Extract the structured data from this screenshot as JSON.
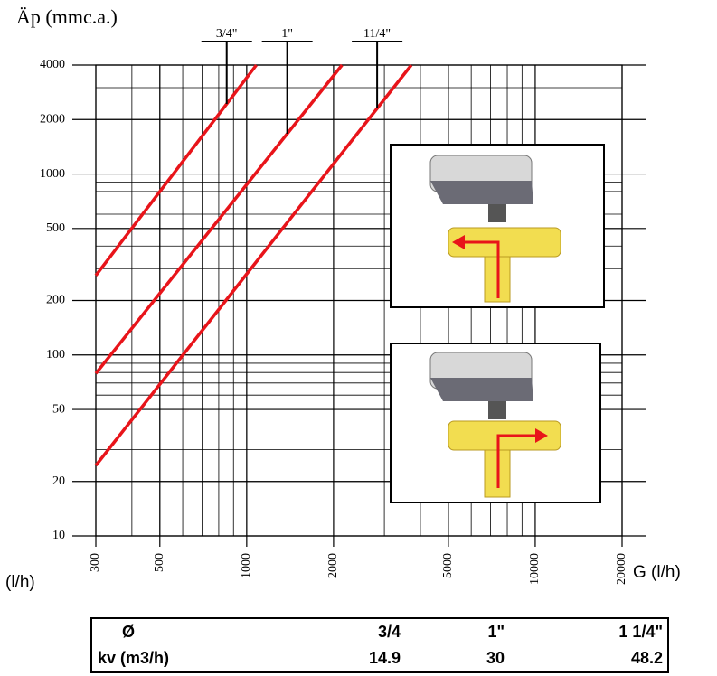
{
  "chart_data": {
    "type": "line",
    "title": "Äp (mmc.a.)",
    "x_label": "G (l/h)",
    "x_unit_label": "(l/h)",
    "log_x": true,
    "log_y": true,
    "grid": true,
    "minor_grid": true,
    "xlim": [
      300,
      20000
    ],
    "ylim": [
      10,
      4000
    ],
    "xticks": [
      300,
      500,
      1000,
      2000,
      5000,
      10000,
      20000
    ],
    "yticks": [
      10,
      20,
      50,
      100,
      200,
      500,
      1000,
      2000,
      4000
    ],
    "series": [
      {
        "name": "3/4\"",
        "color": "#e8141a",
        "x": [
          300,
          1080
        ],
        "values": [
          275,
          4000
        ]
      },
      {
        "name": "1\"",
        "color": "#e8141a",
        "x": [
          300,
          2140
        ],
        "values": [
          79,
          4000
        ]
      },
      {
        "name": "11/4\"",
        "color": "#e8141a",
        "x": [
          300,
          3720
        ],
        "values": [
          24.5,
          4000
        ]
      }
    ]
  },
  "table": {
    "rows": [
      [
        "Ø",
        "3/4",
        "1\"",
        "1 1/4\""
      ],
      [
        "kv (m3/h)",
        "14.9",
        "30",
        "48.2"
      ]
    ]
  }
}
